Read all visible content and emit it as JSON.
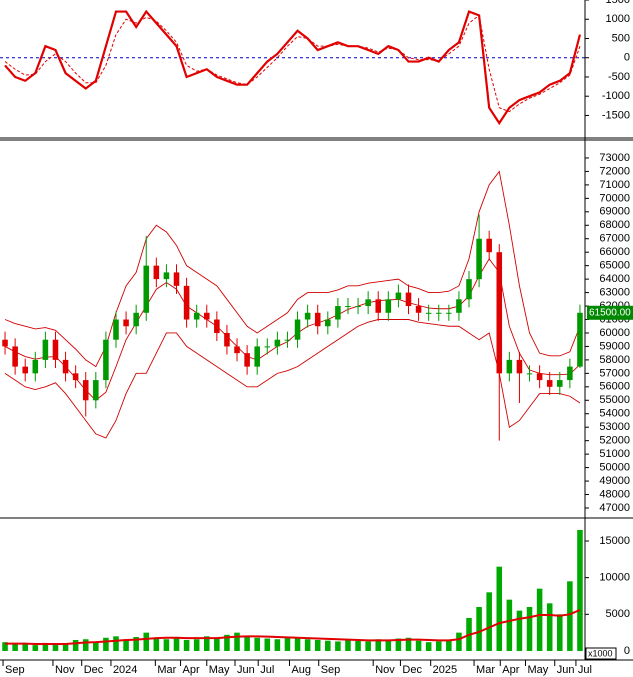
{
  "chart_data": [
    {
      "type": "line",
      "xlim": [
        0,
        58
      ],
      "ylim": [
        -2060,
        1500
      ],
      "yticks": [
        1500,
        1000,
        500,
        0,
        -500,
        -1000,
        -1500
      ],
      "zero_line": true,
      "series": [
        {
          "color": "#e00000",
          "dashed": false,
          "values": [
            -200,
            -500,
            -600,
            -400,
            300,
            200,
            -400,
            -600,
            -800,
            -600,
            300,
            1200,
            1200,
            800,
            1200,
            900,
            600,
            300,
            -500,
            -400,
            -300,
            -500,
            -600,
            -700,
            -700,
            -400,
            -100,
            100,
            400,
            700,
            500,
            200,
            300,
            400,
            300,
            300,
            200,
            100,
            300,
            200,
            -100,
            -100,
            0,
            -100,
            200,
            400,
            1200,
            1100,
            -1300,
            -1700,
            -1300,
            -1100,
            -1000,
            -900,
            -700,
            -600,
            -400,
            600
          ]
        },
        {
          "color": "#e00000",
          "dashed": true,
          "values": [
            -100,
            -300,
            -450,
            -430,
            -100,
            100,
            -100,
            -400,
            -650,
            -650,
            -200,
            600,
            1000,
            900,
            1050,
            950,
            700,
            400,
            -200,
            -350,
            -300,
            -450,
            -550,
            -650,
            -700,
            -500,
            -250,
            0,
            300,
            550,
            500,
            300,
            300,
            350,
            300,
            300,
            250,
            150,
            250,
            200,
            0,
            -50,
            -50,
            -80,
            100,
            300,
            900,
            1100,
            -300,
            -1300,
            -1400,
            -1200,
            -1050,
            -950,
            -800,
            -650,
            -450,
            300
          ]
        }
      ]
    },
    {
      "type": "candlestick",
      "xlim": [
        0,
        58
      ],
      "ylim": [
        46330,
        74260
      ],
      "yticks": [
        73000,
        72000,
        71000,
        70000,
        69000,
        68000,
        67000,
        66000,
        65000,
        64000,
        63000,
        62000,
        61000,
        60000,
        59000,
        58000,
        57000,
        56000,
        55000,
        54000,
        53000,
        52000,
        51000,
        50000,
        49000,
        48000,
        47000
      ],
      "up_color": "#009900",
      "down_color": "#e00000",
      "band_color": "#d00000",
      "last_price": {
        "value": 61500,
        "label": "61500.00"
      },
      "open": [
        59500,
        59000,
        57500,
        57000,
        58000,
        59500,
        58000,
        57000,
        56500,
        55000,
        56500,
        59500,
        61000,
        60500,
        61500,
        65000,
        64000,
        64500,
        63500,
        61000,
        61500,
        61000,
        60000,
        59000,
        58500,
        57500,
        59000,
        59000,
        59500,
        59500,
        61000,
        61500,
        60500,
        61000,
        62000,
        62000,
        62000,
        62500,
        61500,
        62500,
        63000,
        62000,
        61500,
        61500,
        61500,
        61500,
        62500,
        64000,
        67000,
        66000,
        57000,
        58000,
        57000,
        57000,
        56500,
        56000,
        56500,
        57500
      ],
      "high": [
        60100,
        59600,
        58100,
        58600,
        60100,
        60100,
        58600,
        57600,
        57100,
        57100,
        60100,
        61600,
        61600,
        62100,
        67200,
        65600,
        65100,
        65100,
        64100,
        62100,
        62100,
        61600,
        60600,
        59600,
        59100,
        59600,
        59600,
        60100,
        60100,
        61600,
        62100,
        62100,
        61600,
        62600,
        62600,
        62600,
        63100,
        63100,
        63100,
        63600,
        63600,
        62600,
        62100,
        62100,
        62100,
        63100,
        64600,
        68800,
        67600,
        66600,
        58600,
        58600,
        57600,
        57600,
        57100,
        57100,
        58100,
        62100
      ],
      "low": [
        58400,
        56900,
        56400,
        56400,
        57400,
        57400,
        56400,
        55900,
        53800,
        54400,
        55900,
        58900,
        59900,
        59900,
        60900,
        63400,
        63400,
        62900,
        60400,
        60400,
        60400,
        59400,
        58400,
        57900,
        56900,
        56900,
        58400,
        58400,
        58900,
        58900,
        60400,
        59900,
        59900,
        60400,
        61400,
        61400,
        61400,
        60900,
        60900,
        61900,
        61400,
        60900,
        60900,
        60900,
        60900,
        60900,
        61900,
        63400,
        65400,
        52000,
        56400,
        54800,
        56400,
        55900,
        55400,
        55400,
        55900,
        57400
      ],
      "close": [
        59000,
        57500,
        57000,
        58000,
        59500,
        58000,
        57000,
        56500,
        55000,
        56500,
        59500,
        61000,
        60500,
        61500,
        65000,
        64000,
        64500,
        63500,
        61000,
        61500,
        61000,
        60000,
        59000,
        58500,
        57500,
        59000,
        59000,
        59500,
        59500,
        61000,
        61500,
        60500,
        61000,
        62000,
        62000,
        62000,
        62500,
        61500,
        62500,
        63000,
        62000,
        61500,
        61500,
        61500,
        61500,
        62500,
        64000,
        67000,
        66000,
        57000,
        58000,
        57000,
        57000,
        56500,
        56000,
        56500,
        57500,
        61500
      ],
      "bands": {
        "upper": [
          61000,
          60700,
          60500,
          60300,
          60400,
          60200,
          59500,
          58800,
          58000,
          57500,
          59000,
          61500,
          63500,
          64500,
          67000,
          68000,
          67500,
          66500,
          65000,
          64500,
          64000,
          63500,
          62500,
          61500,
          60500,
          60000,
          60500,
          61000,
          61500,
          62500,
          63000,
          63000,
          63000,
          63200,
          63500,
          63500,
          63700,
          63800,
          63900,
          64000,
          63500,
          63300,
          63000,
          63000,
          63100,
          63500,
          65500,
          69000,
          71000,
          72000,
          68000,
          63500,
          60000,
          58500,
          58300,
          58300,
          58600,
          60500
        ],
        "middle": [
          59000,
          58600,
          58250,
          58050,
          58200,
          58250,
          57500,
          56650,
          55750,
          55000,
          55600,
          57500,
          59500,
          60750,
          62000,
          63250,
          63750,
          63250,
          62000,
          61500,
          61000,
          60500,
          59750,
          59000,
          58250,
          58000,
          58500,
          59000,
          59350,
          60000,
          60500,
          60750,
          61000,
          61350,
          61750,
          62000,
          62250,
          62400,
          62450,
          62500,
          62250,
          62050,
          61850,
          61800,
          61800,
          62000,
          62750,
          64250,
          65500,
          64500,
          60500,
          58500,
          57250,
          57000,
          56900,
          56900,
          56950,
          57650
        ],
        "lower": [
          57000,
          56500,
          56000,
          55800,
          56000,
          56300,
          55500,
          54500,
          53500,
          52500,
          52200,
          53500,
          55500,
          57000,
          57000,
          58500,
          60000,
          60000,
          59000,
          58500,
          58000,
          57500,
          57000,
          56500,
          56000,
          56000,
          56500,
          57000,
          57200,
          57500,
          58000,
          58500,
          59000,
          59500,
          60000,
          60500,
          60800,
          61000,
          61000,
          61000,
          61000,
          60800,
          60700,
          60600,
          60500,
          60500,
          60000,
          59500,
          60000,
          57000,
          53000,
          53500,
          54500,
          55500,
          55500,
          55500,
          55300,
          54800
        ]
      }
    },
    {
      "type": "bar",
      "xlim": [
        0,
        58
      ],
      "ylim": [
        -1230,
        18000
      ],
      "yticks": [
        15000,
        10000,
        5000,
        0
      ],
      "unit": "x1000",
      "color": "#00aa00",
      "values": [
        1200,
        900,
        1000,
        800,
        1100,
        1000,
        900,
        1500,
        1600,
        1200,
        1800,
        2000,
        1500,
        1900,
        2500,
        1800,
        1600,
        1700,
        1500,
        1600,
        2000,
        1800,
        2200,
        2500,
        2000,
        1800,
        1700,
        1600,
        1900,
        1800,
        1600,
        1500,
        1400,
        1300,
        1500,
        1400,
        1300,
        1600,
        1500,
        1700,
        1800,
        1400,
        1200,
        1300,
        1500,
        2500,
        4500,
        6000,
        8000,
        11500,
        7000,
        5500,
        6000,
        8500,
        6500,
        5000,
        9500,
        16500
      ],
      "ma": {
        "color": "#e00000",
        "values": [
          1000,
          1000,
          1000,
          950,
          950,
          950,
          950,
          1050,
          1150,
          1200,
          1300,
          1400,
          1500,
          1550,
          1650,
          1750,
          1800,
          1800,
          1750,
          1750,
          1750,
          1750,
          1850,
          1950,
          2000,
          2000,
          1950,
          1900,
          1850,
          1800,
          1750,
          1700,
          1650,
          1600,
          1550,
          1500,
          1450,
          1450,
          1450,
          1500,
          1550,
          1550,
          1500,
          1450,
          1450,
          1600,
          2200,
          2600,
          3200,
          3800,
          4100,
          4400,
          4600,
          4900,
          4900,
          4800,
          5000,
          5600
        ]
      },
      "xticks": [
        {
          "value": 0.3,
          "label": "Sep"
        },
        {
          "value": 5.25,
          "label": "Nov"
        },
        {
          "value": 8.1,
          "label": "Dec"
        },
        {
          "value": 11.0,
          "label": "2024"
        },
        {
          "value": 15.4,
          "label": "Mar"
        },
        {
          "value": 17.9,
          "label": "Apr"
        },
        {
          "value": 20.5,
          "label": "May"
        },
        {
          "value": 23.3,
          "label": "Jun"
        },
        {
          "value": 25.6,
          "label": "Jul"
        },
        {
          "value": 28.7,
          "label": "Aug"
        },
        {
          "value": 31.6,
          "label": "Sep"
        },
        {
          "value": 37.0,
          "label": "Nov"
        },
        {
          "value": 39.7,
          "label": "Dec"
        },
        {
          "value": 42.7,
          "label": "2025"
        },
        {
          "value": 47.0,
          "label": "Mar"
        },
        {
          "value": 49.6,
          "label": "Apr"
        },
        {
          "value": 52.1,
          "label": "May"
        },
        {
          "value": 55.0,
          "label": "Jun"
        },
        {
          "value": 57.1,
          "label": "Jul"
        }
      ]
    }
  ]
}
